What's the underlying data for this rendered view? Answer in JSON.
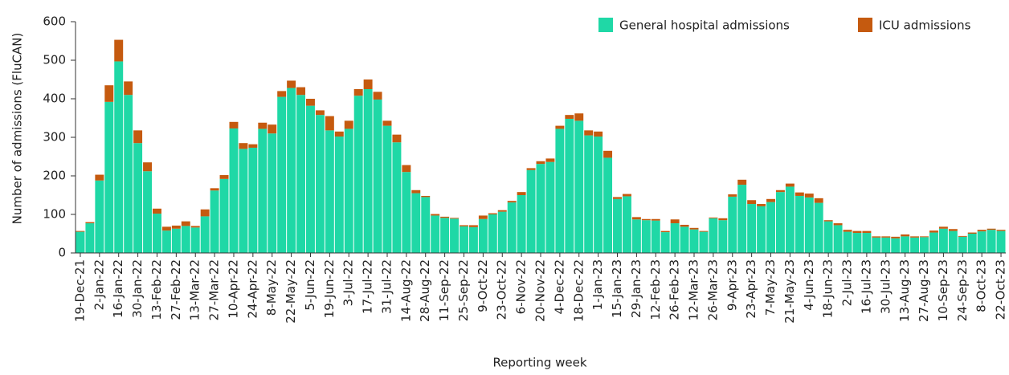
{
  "chart_data": {
    "type": "stacked_bar",
    "x_label": "Reporting week",
    "y_label": "Number of admissions (FluCAN)",
    "categories": [
      "19-Dec-21",
      null,
      "2-Jan-22",
      null,
      "16-Jan-22",
      null,
      "30-Jan-22",
      null,
      "13-Feb-22",
      null,
      "27-Feb-22",
      null,
      "13-Mar-22",
      null,
      "27-Mar-22",
      null,
      "10-Apr-22",
      null,
      "24-Apr-22",
      null,
      "8-May-22",
      null,
      "22-May-22",
      null,
      "5-Jun-22",
      null,
      "19-Jun-22",
      null,
      "3-Jul-22",
      null,
      "17-Jul-22",
      null,
      "31-Jul-22",
      null,
      "14-Aug-22",
      null,
      "28-Aug-22",
      null,
      "11-Sep-22",
      null,
      "25-Sep-22",
      null,
      "9-Oct-22",
      null,
      "23-Oct-22",
      null,
      "6-Nov-22",
      null,
      "20-Nov-22",
      null,
      "4-Dec-22",
      null,
      "18-Dec-22",
      null,
      "1-Jan-23",
      null,
      "15-Jan-23",
      null,
      "29-Jan-23",
      null,
      "12-Feb-23",
      null,
      "26-Feb-23",
      null,
      "12-Mar-23",
      null,
      "26-Mar-23",
      null,
      "9-Apr-23",
      null,
      "23-Apr-23",
      null,
      "7-May-23",
      null,
      "21-May-23",
      null,
      "4-Jun-23",
      null,
      "18-Jun-23",
      null,
      "2-Jul-23",
      null,
      "16-Jul-23",
      null,
      "30-Jul-23",
      null,
      "13-Aug-23",
      null,
      "27-Aug-23",
      null,
      "10-Sep-23",
      null,
      "24-Sep-23",
      null,
      "8-Oct-23",
      null,
      "22-Oct-23"
    ],
    "series": [
      {
        "name": "General hospital admissions",
        "color": "#1fd8a6",
        "values": [
          55,
          77,
          188,
          392,
          497,
          410,
          285,
          212,
          102,
          58,
          63,
          70,
          66,
          95,
          162,
          192,
          323,
          270,
          273,
          322,
          310,
          405,
          428,
          410,
          382,
          358,
          318,
          302,
          322,
          408,
          425,
          398,
          330,
          287,
          210,
          155,
          145,
          97,
          91,
          89,
          69,
          67,
          88,
          100,
          107,
          131,
          150,
          215,
          231,
          236,
          322,
          348,
          343,
          305,
          302,
          247,
          140,
          147,
          87,
          85,
          84,
          54,
          77,
          68,
          61,
          55,
          90,
          85,
          146,
          177,
          127,
          121,
          132,
          158,
          172,
          148,
          144,
          130,
          82,
          72,
          55,
          52,
          52,
          40,
          40,
          38,
          43,
          40,
          41,
          53,
          63,
          57,
          42,
          50,
          56,
          60,
          57
        ]
      },
      {
        "name": "ICU admissions",
        "color": "#c55a0f",
        "values": [
          2,
          3,
          15,
          43,
          56,
          35,
          33,
          23,
          13,
          10,
          8,
          12,
          4,
          18,
          6,
          10,
          17,
          15,
          9,
          16,
          23,
          15,
          19,
          20,
          18,
          12,
          37,
          13,
          21,
          17,
          25,
          20,
          13,
          20,
          18,
          8,
          3,
          4,
          3,
          2,
          3,
          5,
          9,
          3,
          4,
          4,
          8,
          5,
          7,
          9,
          8,
          10,
          19,
          13,
          13,
          18,
          5,
          6,
          6,
          3,
          4,
          3,
          10,
          5,
          4,
          2,
          2,
          5,
          6,
          13,
          10,
          6,
          8,
          5,
          8,
          9,
          10,
          12,
          3,
          5,
          5,
          5,
          5,
          3,
          3,
          4,
          5,
          3,
          2,
          5,
          5,
          5,
          2,
          3,
          4,
          3,
          3
        ]
      }
    ],
    "ylim": [
      0,
      600
    ],
    "yticks": [
      0,
      100,
      200,
      300,
      400,
      500,
      600
    ],
    "legend": "top-right"
  }
}
